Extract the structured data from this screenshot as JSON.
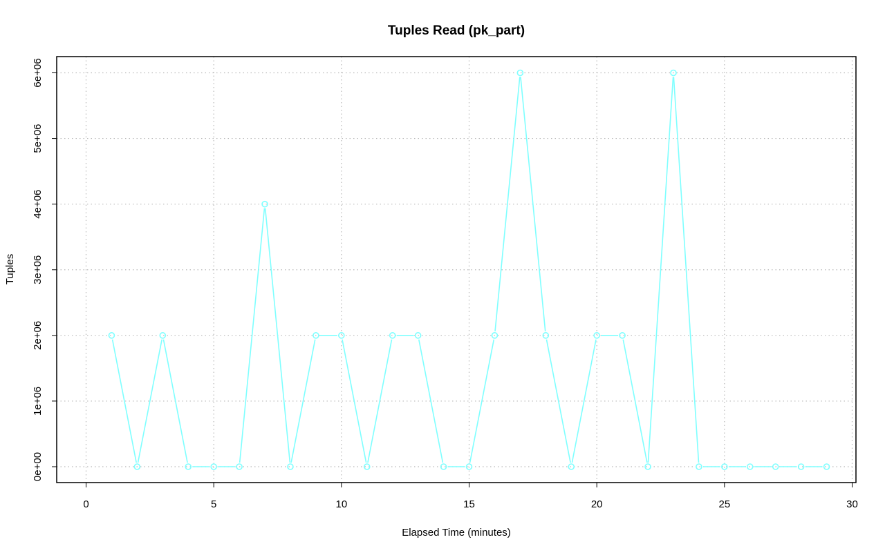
{
  "chart_data": {
    "type": "line",
    "title": "Tuples Read (pk_part)",
    "xlabel": "Elapsed Time (minutes)",
    "ylabel": "Tuples",
    "xlim": [
      0,
      30
    ],
    "ylim": [
      0,
      6000000
    ],
    "x_ticks": [
      0,
      5,
      10,
      15,
      20,
      25,
      30
    ],
    "x_tick_labels": [
      "0",
      "5",
      "10",
      "15",
      "20",
      "25",
      "30"
    ],
    "y_ticks": [
      0,
      1000000,
      2000000,
      3000000,
      4000000,
      5000000,
      6000000
    ],
    "y_tick_labels": [
      "0e+00",
      "1e+06",
      "2e+06",
      "3e+06",
      "4e+06",
      "5e+06",
      "6e+06"
    ],
    "grid": true,
    "series": [
      {
        "color": "#7fffff",
        "x": [
          1,
          2,
          3,
          4,
          5,
          6,
          7,
          8,
          9,
          10,
          11,
          12,
          13,
          14,
          15,
          16,
          17,
          18,
          19,
          20,
          21,
          22,
          23,
          24,
          25,
          26,
          27,
          28,
          29
        ],
        "values": [
          2000000,
          0,
          2000000,
          0,
          0,
          0,
          4000000,
          0,
          2000000,
          2000000,
          0,
          2000000,
          2000000,
          0,
          0,
          2000000,
          6000000,
          2000000,
          0,
          2000000,
          2000000,
          0,
          6000000,
          0,
          0,
          0,
          0,
          0,
          0
        ]
      }
    ]
  }
}
